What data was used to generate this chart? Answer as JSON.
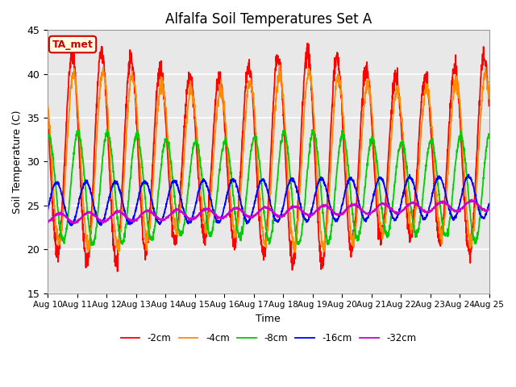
{
  "title": "Alfalfa Soil Temperatures Set A",
  "xlabel": "Time",
  "ylabel": "Soil Temperature (C)",
  "ylim": [
    15,
    45
  ],
  "xlim": [
    0,
    15
  ],
  "xtick_labels": [
    "Aug 10",
    "Aug 11",
    "Aug 12",
    "Aug 13",
    "Aug 14",
    "Aug 15",
    "Aug 16",
    "Aug 17",
    "Aug 18",
    "Aug 19",
    "Aug 20",
    "Aug 21",
    "Aug 22",
    "Aug 23",
    "Aug 24",
    "Aug 25"
  ],
  "annotation": "TA_met",
  "ytick_vals": [
    15,
    20,
    25,
    30,
    35,
    40,
    45
  ],
  "line_colors": [
    "#ff0000",
    "#ff8c00",
    "#00cc00",
    "#0000ff",
    "#cc00cc"
  ],
  "line_labels": [
    "-2cm",
    "-4cm",
    "-8cm",
    "-16cm",
    "-32cm"
  ],
  "line_widths": [
    1.3,
    1.3,
    1.3,
    1.3,
    1.3
  ],
  "bg_color": "#e8e8e8",
  "fig_bg": "#ffffff",
  "n_points": 2000
}
